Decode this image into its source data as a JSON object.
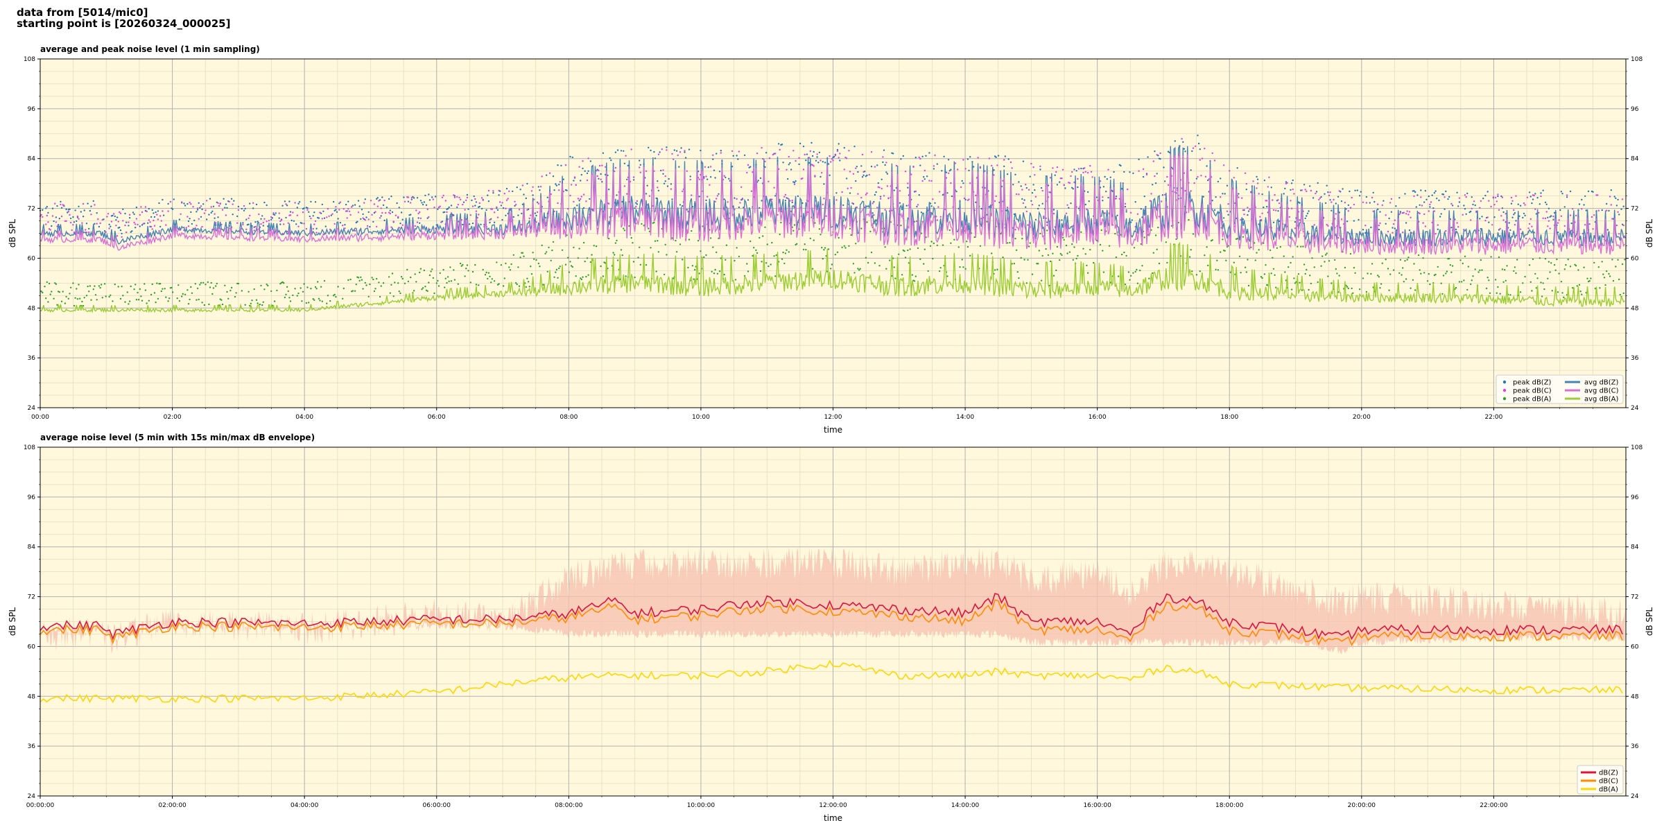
{
  "header": {
    "line1": "data from [5014/mic0]",
    "line2": "starting point is [20260324_000025]"
  },
  "chart_data": [
    {
      "type": "line",
      "title": "average and peak noise level (1 min sampling)",
      "xlabel": "time",
      "ylabel": "dB SPL",
      "ylim": [
        24,
        108
      ],
      "yticks": [
        "24",
        "36",
        "48",
        "60",
        "72",
        "84",
        "96",
        "108"
      ],
      "xlim_hours": [
        0,
        24
      ],
      "xticks": [
        "00:00",
        "02:00",
        "04:00",
        "06:00",
        "08:00",
        "10:00",
        "12:00",
        "14:00",
        "16:00",
        "18:00",
        "20:00",
        "22:00"
      ],
      "grid": true,
      "legend_position": "bottom-right",
      "background": "#fff8dc",
      "series": [
        {
          "name": "peak dB(Z)",
          "kind": "scatter",
          "color": "#1f77b4"
        },
        {
          "name": "peak dB(C)",
          "kind": "scatter",
          "color": "#e040e0"
        },
        {
          "name": "peak dB(A)",
          "kind": "scatter",
          "color": "#2ca02c"
        },
        {
          "name": "avg dB(Z)",
          "kind": "line",
          "color": "#4682b4"
        },
        {
          "name": "avg dB(C)",
          "kind": "line",
          "color": "#da70d6"
        },
        {
          "name": "avg dB(A)",
          "kind": "line",
          "color": "#9acd32"
        }
      ],
      "profile": {
        "hours": [
          0,
          0.9,
          1.2,
          2,
          4,
          6,
          7,
          7.5,
          8,
          9,
          10,
          11,
          12,
          13,
          14,
          15,
          16,
          16.5,
          17,
          17.5,
          18,
          19,
          20,
          21,
          22,
          23,
          24
        ],
        "avg_z": [
          66,
          66,
          64,
          67,
          66,
          67,
          67,
          68,
          70,
          71,
          70,
          71,
          71,
          69,
          70,
          67,
          69,
          67,
          71,
          72,
          68,
          66,
          65,
          65,
          65,
          65,
          65
        ],
        "avg_c": [
          64.5,
          64.5,
          62.5,
          65.5,
          64.5,
          65.5,
          66,
          67,
          68,
          69,
          68,
          69,
          69,
          67,
          68,
          65,
          67,
          65,
          69,
          70,
          66,
          64,
          63,
          63,
          63,
          63,
          63
        ],
        "avg_a": [
          47.5,
          47.5,
          47.5,
          47.5,
          47.5,
          50.5,
          51.5,
          52,
          53,
          54,
          53,
          54,
          55,
          53,
          54,
          52,
          53,
          52,
          55,
          55,
          52,
          51,
          50.5,
          50.5,
          50,
          49.5,
          49.5
        ],
        "amplitude": [
          1,
          1,
          1,
          1,
          1,
          1.5,
          2,
          3,
          5,
          6,
          6,
          6,
          6,
          6,
          6,
          6,
          5,
          5,
          7,
          7,
          5,
          4,
          3,
          3,
          3,
          3,
          3
        ]
      }
    },
    {
      "type": "line",
      "title": "average noise level (5 min with 15s min/max dB envelope)",
      "xlabel": "time",
      "ylabel": "dB SPL",
      "ylim": [
        24,
        108
      ],
      "yticks": [
        "24",
        "36",
        "48",
        "60",
        "72",
        "84",
        "96",
        "108"
      ],
      "xlim_hours": [
        0,
        24
      ],
      "xticks": [
        "00:00:00",
        "02:00:00",
        "04:00:00",
        "06:00:00",
        "08:00:00",
        "10:00:00",
        "12:00:00",
        "14:00:00",
        "16:00:00",
        "18:00:00",
        "20:00:00",
        "22:00:00"
      ],
      "grid": true,
      "legend_position": "bottom-right",
      "background": "#fff8dc",
      "series": [
        {
          "name": "dB(Z)",
          "color": "#dc143c"
        },
        {
          "name": "dB(C)",
          "color": "#ff8c00"
        },
        {
          "name": "dB(A)",
          "color": "#ffd700"
        }
      ],
      "envelope_color": "#f5c0b0",
      "profile": {
        "hours": [
          0,
          0.9,
          1.1,
          2,
          4,
          6,
          7,
          8,
          8.7,
          9,
          10,
          11,
          12,
          13,
          14,
          14.5,
          15,
          16,
          16.5,
          17,
          17.5,
          18,
          19,
          19.7,
          20,
          22,
          24
        ],
        "z": [
          65,
          65,
          63,
          66,
          65.5,
          66.5,
          66.5,
          68,
          71,
          68,
          69,
          71,
          70,
          69,
          68,
          72,
          66,
          66,
          63,
          72,
          71,
          66,
          64,
          62,
          64,
          64,
          64
        ],
        "c": [
          64,
          64,
          62,
          65,
          64.5,
          65.5,
          65.5,
          67,
          69.5,
          66.5,
          67.5,
          69.5,
          68.5,
          67.5,
          66,
          70.5,
          64,
          64,
          61.5,
          70,
          69.5,
          64,
          62.5,
          60.5,
          62.5,
          62.5,
          62.5
        ],
        "a": [
          47.5,
          47.5,
          47.5,
          47.5,
          47.5,
          49,
          51,
          52.5,
          53,
          53,
          53,
          54,
          56,
          53,
          53,
          54,
          53,
          53,
          52,
          55,
          54,
          51,
          50.5,
          50,
          50,
          49.5,
          49.5
        ],
        "env_hi": [
          67,
          67,
          66,
          70,
          68,
          72,
          70,
          80,
          84,
          84,
          84,
          84,
          84,
          82,
          84,
          84,
          80,
          82,
          76,
          84,
          84,
          82,
          78,
          74,
          76,
          74,
          72
        ],
        "env_lo": [
          63,
          63,
          61,
          64,
          64,
          64,
          64,
          62,
          62,
          62,
          62,
          62,
          62,
          62,
          62,
          62,
          60,
          60,
          60,
          60,
          60,
          60,
          60,
          58,
          60,
          61,
          61
        ]
      }
    }
  ]
}
